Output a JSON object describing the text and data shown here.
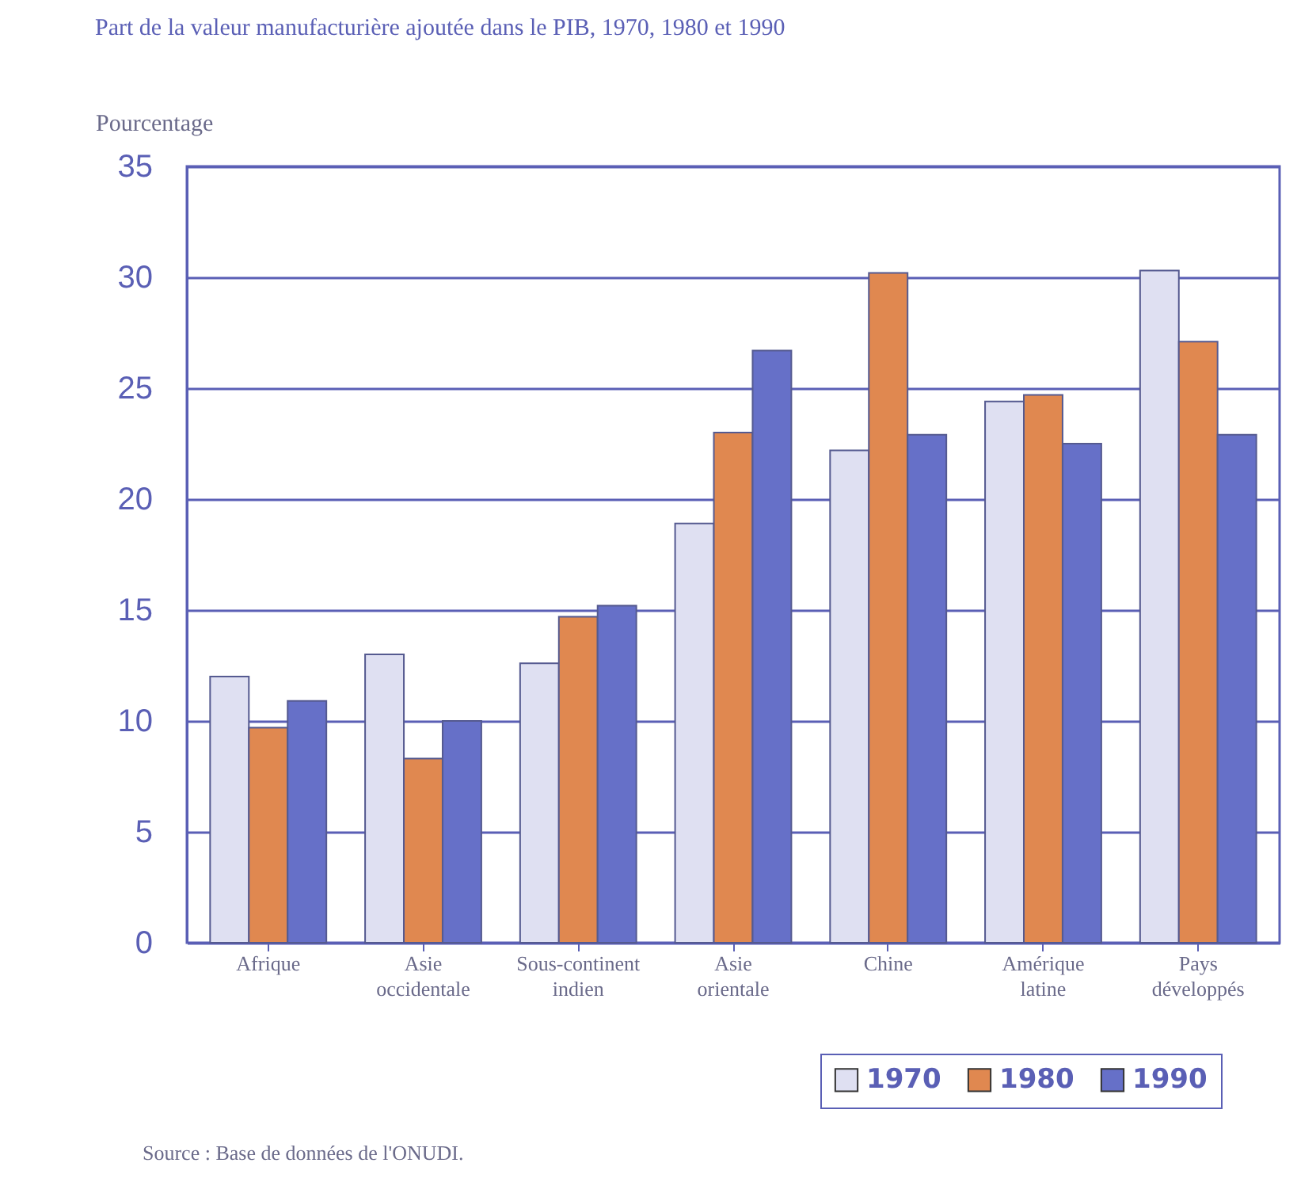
{
  "chart_data": {
    "type": "bar",
    "title": "Part de la valeur manufacturière ajoutée dans le PIB, 1970, 1980 et 1990",
    "ylabel": "Pourcentage",
    "categories": [
      "Afrique",
      "Asie occidentale",
      "Sous-continent indien",
      "Asie orientale",
      "Chine",
      "Amérique latine",
      "Pays développés"
    ],
    "series": [
      {
        "name": "1970",
        "color": "#dfe0f2",
        "values": [
          12,
          13,
          12.6,
          18.9,
          22.2,
          24.4,
          30.3
        ]
      },
      {
        "name": "1980",
        "color": "#e08850",
        "values": [
          9.7,
          8.3,
          14.7,
          23,
          30.2,
          24.7,
          27.1
        ]
      },
      {
        "name": "1990",
        "color": "#6670c8",
        "values": [
          10.9,
          10,
          15.2,
          26.7,
          22.9,
          22.5,
          22.9
        ]
      }
    ],
    "ylim": [
      0,
      35
    ],
    "yticks": [
      0,
      5,
      10,
      15,
      20,
      25,
      30,
      35
    ],
    "grid": "y",
    "legend": "bottom right",
    "annotations": [
      "Source : Base de données de l'ONUDI."
    ]
  }
}
